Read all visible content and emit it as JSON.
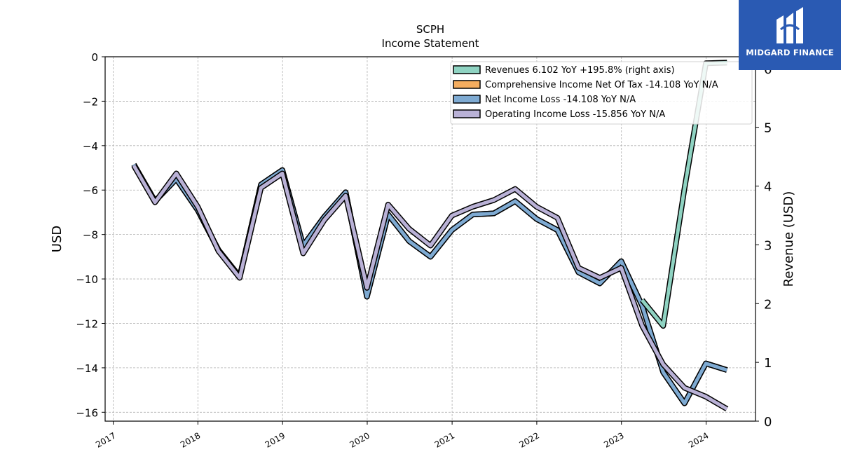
{
  "brand": {
    "name": "MIDGARD FINANCE",
    "logo_icon": "midgard-logo-icon",
    "color": "#2a5ab3"
  },
  "chart_data": {
    "type": "line",
    "title": "SCPH",
    "subtitle": "Income Statement",
    "ylabel": "USD",
    "ylabel_right": "Revenue (USD)",
    "ylim": [
      -16.4,
      0
    ],
    "ylim_right": [
      0,
      6.2
    ],
    "yticks": [
      0,
      -2,
      -4,
      -6,
      -8,
      -10,
      -12,
      -14,
      -16
    ],
    "yticks_right": [
      0,
      1,
      2,
      3,
      4,
      5,
      6
    ],
    "xlim": [
      "2016-11-27",
      "2024-08-01"
    ],
    "xticks": [
      "2017",
      "2018",
      "2019",
      "2020",
      "2021",
      "2022",
      "2023",
      "2024"
    ],
    "grid": true,
    "legend_position": "top-right",
    "series": [
      {
        "name": "Revenues  6.102 YoY +195.8% (right axis)",
        "color": "#8fd3c2",
        "axis": "right",
        "x": [
          "2023-03-31",
          "2023-06-30",
          "2023-09-30",
          "2023-12-31",
          "2024-03-31"
        ],
        "values": [
          2.06,
          1.62,
          3.96,
          6.09,
          6.1
        ]
      },
      {
        "name": "Comprehensive Income Net Of Tax  -14.108 YoY N/A",
        "color": "#f5ad5f",
        "axis": "left",
        "x": [
          "2017-03-31",
          "2017-06-30",
          "2017-09-30",
          "2017-12-31",
          "2018-03-31",
          "2018-06-30",
          "2018-09-30",
          "2018-12-31",
          "2019-03-31",
          "2019-06-30",
          "2019-09-30",
          "2019-12-31",
          "2020-03-31",
          "2020-06-30",
          "2020-09-30",
          "2020-12-31",
          "2021-03-31",
          "2021-06-30",
          "2021-09-30",
          "2021-12-31",
          "2022-03-31",
          "2022-06-30",
          "2022-09-30",
          "2022-12-31",
          "2023-03-31",
          "2023-06-30",
          "2023-09-30",
          "2023-12-31",
          "2024-03-31"
        ],
        "values": [
          -4.85,
          -6.5,
          -5.5,
          -6.9,
          -8.7,
          -9.9,
          -5.75,
          -5.1,
          -8.5,
          -7.2,
          -6.1,
          -10.8,
          -7.1,
          -8.3,
          -9.0,
          -7.8,
          -7.1,
          -7.05,
          -6.5,
          -7.3,
          -7.8,
          -9.7,
          -10.2,
          -9.2,
          -11.2,
          -14.2,
          -15.6,
          -13.8,
          -14.1
        ]
      },
      {
        "name": "Net Income Loss  -14.108 YoY N/A",
        "color": "#7eaad2",
        "axis": "left",
        "x": [
          "2017-03-31",
          "2017-06-30",
          "2017-09-30",
          "2017-12-31",
          "2018-03-31",
          "2018-06-30",
          "2018-09-30",
          "2018-12-31",
          "2019-03-31",
          "2019-06-30",
          "2019-09-30",
          "2019-12-31",
          "2020-03-31",
          "2020-06-30",
          "2020-09-30",
          "2020-12-31",
          "2021-03-31",
          "2021-06-30",
          "2021-09-30",
          "2021-12-31",
          "2022-03-31",
          "2022-06-30",
          "2022-09-30",
          "2022-12-31",
          "2023-03-31",
          "2023-06-30",
          "2023-09-30",
          "2023-12-31",
          "2024-03-31"
        ],
        "values": [
          -4.85,
          -6.5,
          -5.5,
          -6.9,
          -8.7,
          -9.9,
          -5.75,
          -5.1,
          -8.5,
          -7.2,
          -6.1,
          -10.8,
          -7.1,
          -8.3,
          -9.0,
          -7.8,
          -7.1,
          -7.05,
          -6.5,
          -7.3,
          -7.8,
          -9.7,
          -10.2,
          -9.2,
          -11.2,
          -14.2,
          -15.6,
          -13.8,
          -14.1
        ]
      },
      {
        "name": "Operating Income Loss  -15.856 YoY N/A",
        "color": "#b9b1d6",
        "axis": "left",
        "x": [
          "2017-03-31",
          "2017-06-30",
          "2017-09-30",
          "2017-12-31",
          "2018-03-31",
          "2018-06-30",
          "2018-09-30",
          "2018-12-31",
          "2019-03-31",
          "2019-06-30",
          "2019-09-30",
          "2019-12-31",
          "2020-03-31",
          "2020-06-30",
          "2020-09-30",
          "2020-12-31",
          "2021-03-31",
          "2021-06-30",
          "2021-09-30",
          "2021-12-31",
          "2022-03-31",
          "2022-06-30",
          "2022-09-30",
          "2022-12-31",
          "2023-03-31",
          "2023-06-30",
          "2023-09-30",
          "2023-12-31",
          "2024-03-31"
        ],
        "values": [
          -4.9,
          -6.55,
          -5.25,
          -6.75,
          -8.75,
          -9.95,
          -5.9,
          -5.25,
          -8.85,
          -7.35,
          -6.25,
          -10.4,
          -6.65,
          -7.75,
          -8.5,
          -7.15,
          -6.75,
          -6.45,
          -5.95,
          -6.75,
          -7.25,
          -9.5,
          -9.95,
          -9.5,
          -12.1,
          -13.85,
          -14.9,
          -15.3,
          -15.85
        ]
      }
    ]
  }
}
